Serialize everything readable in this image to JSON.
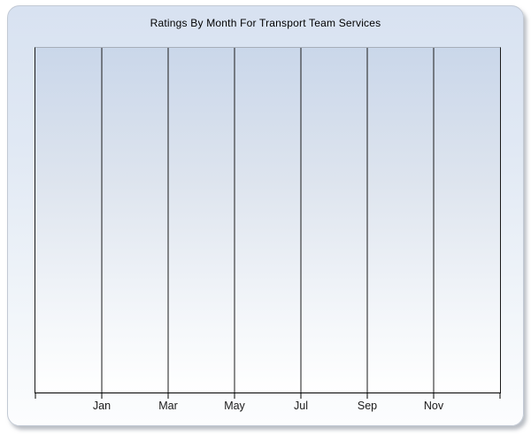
{
  "window": {
    "background": "#ffffff"
  },
  "panel": {
    "border_color": "#c2c9d4",
    "background_top": "#d8e2f1",
    "background_bottom": "#fcfdfe",
    "shadow_color": "#828994"
  },
  "chart_data": {
    "type": "line",
    "title": "Ratings By Month For Transport Team Services",
    "xlabel": "",
    "ylabel": "",
    "x_tick_labels": [
      "Jan",
      "Mar",
      "May",
      "Jul",
      "Sep",
      "Nov"
    ],
    "x_gridline_count": 8,
    "x_interval_count": 7,
    "series": [],
    "grid": "vertical-only",
    "legend": "none",
    "plot_background_top": "#cad7ea",
    "plot_background_bottom": "#ffffff",
    "gridline_color": "#1a1a1a",
    "axis_color": "#000000",
    "plot_top_border_color": "#a7aeb9",
    "label_color": "#1a1a1a",
    "title_color": "#000000"
  }
}
